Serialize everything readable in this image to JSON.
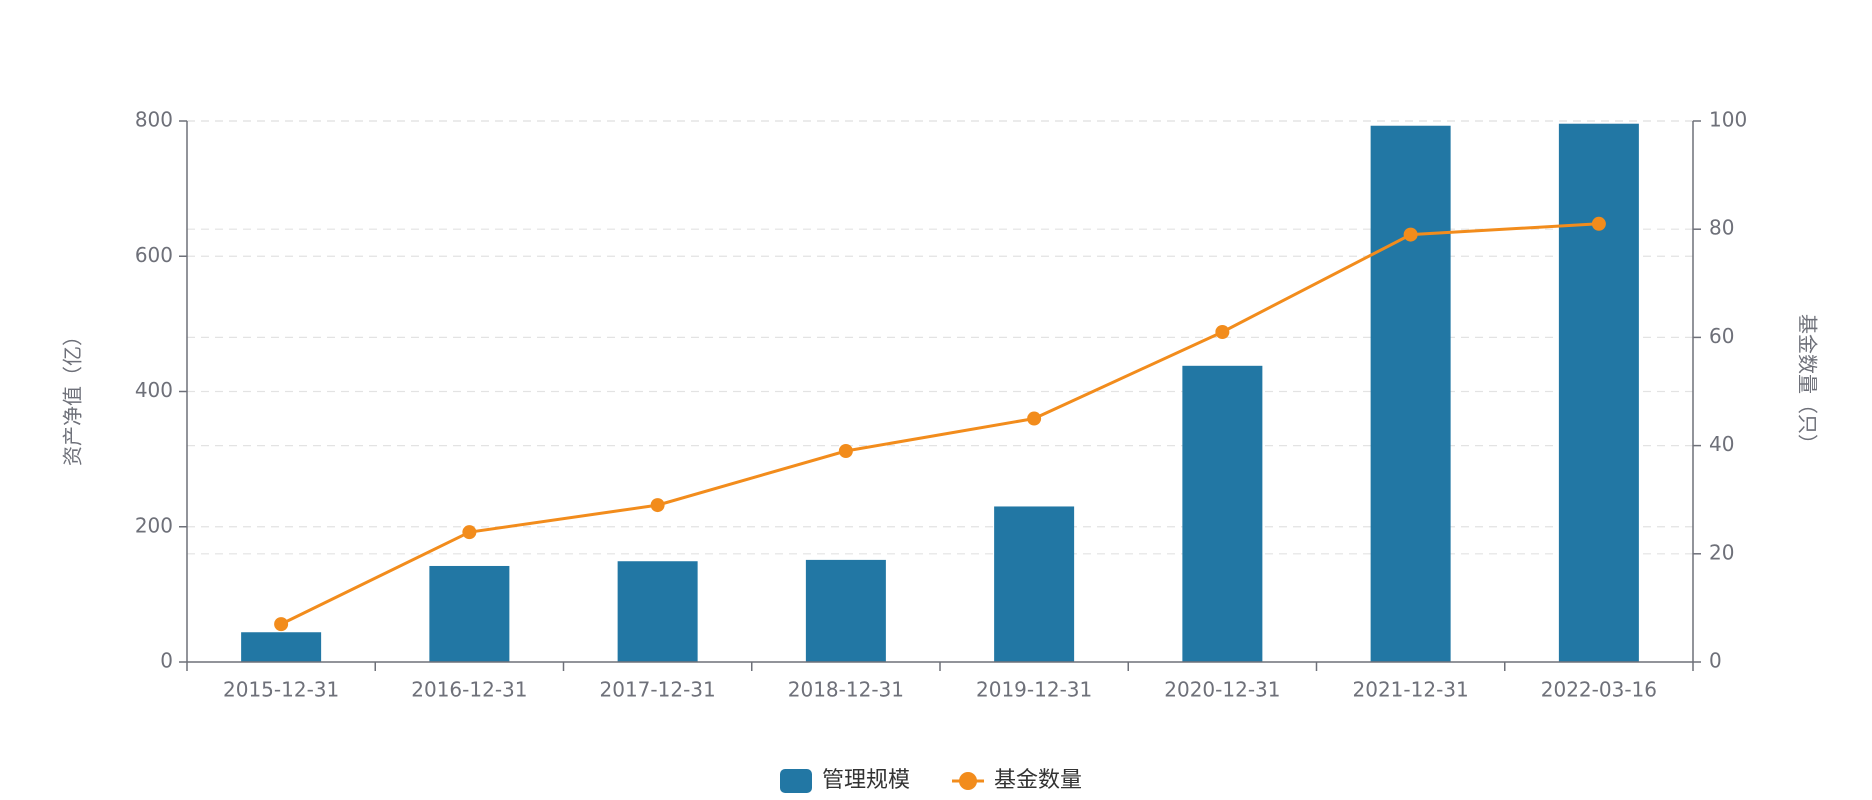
{
  "chart_data": {
    "type": "bar",
    "categories": [
      "2015-12-31",
      "2016-12-31",
      "2017-12-31",
      "2018-12-31",
      "2019-12-31",
      "2020-12-31",
      "2021-12-31",
      "2022-03-16"
    ],
    "series": [
      {
        "name": "管理规模",
        "type": "bar",
        "color": "#2277a4",
        "values": [
          44,
          142,
          149,
          151,
          230,
          438,
          793,
          796
        ]
      },
      {
        "name": "基金数量",
        "type": "line",
        "color": "#f28c1c",
        "axis": "y2",
        "values": [
          7,
          24,
          29,
          39,
          45,
          61,
          79,
          81
        ]
      }
    ],
    "ylabel": "资产净值（亿）",
    "y2label": "基金数量（只）",
    "ylim": [
      0,
      800
    ],
    "yticks": [
      0,
      200,
      400,
      600,
      800
    ],
    "y2lim": [
      0,
      100
    ],
    "y2ticks": [
      0,
      20,
      40,
      60,
      80,
      100
    ],
    "grid": true
  }
}
